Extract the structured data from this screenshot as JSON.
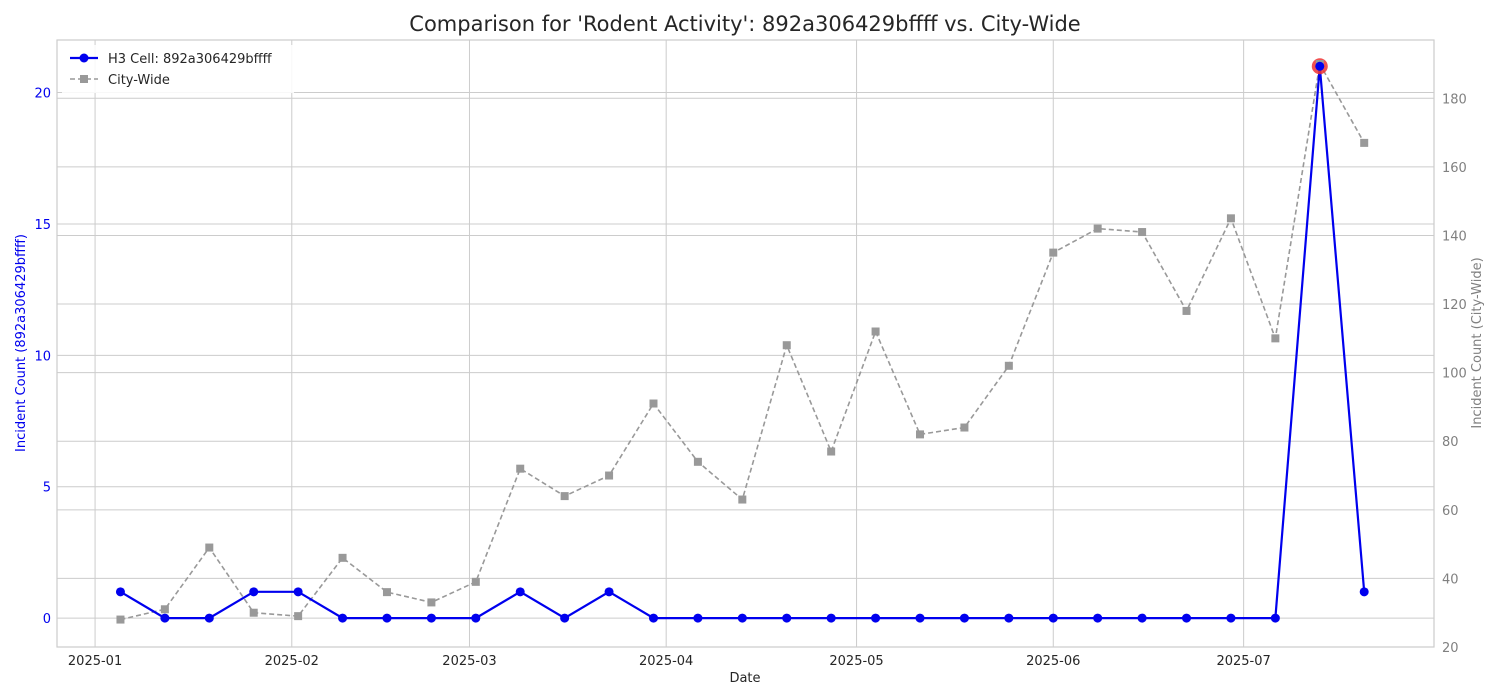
{
  "chart_data": {
    "type": "line",
    "title": "Comparison for 'Rodent Activity': 892a306429bffff vs. City-Wide",
    "xlabel": "Date",
    "ylabel_left": "Incident Count (892a306429bffff)",
    "ylabel_right": "Incident Count (City-Wide)",
    "x_ticks": [
      "2025-01-01",
      "2025-02-01",
      "2025-03-01",
      "2025-04-01",
      "2025-05-01",
      "2025-06-01",
      "2025-07-01"
    ],
    "x_tick_labels": [
      "2025-01",
      "2025-02",
      "2025-03",
      "2025-04",
      "2025-05",
      "2025-06",
      "2025-07"
    ],
    "xlim": [
      "2024-12-26",
      "2025-07-31"
    ],
    "ylim_left": [
      -1.1,
      22
    ],
    "ylim_right": [
      20,
      197
    ],
    "yticks_left": [
      0,
      5,
      10,
      15,
      20
    ],
    "yticks_right": [
      20,
      40,
      60,
      80,
      100,
      120,
      140,
      160,
      180
    ],
    "grid": true,
    "legend_position": "top-left",
    "colors": {
      "h3": "#0000ee",
      "city": "#999999",
      "highlight": "#ee3333",
      "left_axis": "#0000ee",
      "right_axis": "#808080"
    },
    "dates": [
      "2025-01-05",
      "2025-01-12",
      "2025-01-19",
      "2025-01-26",
      "2025-02-02",
      "2025-02-09",
      "2025-02-16",
      "2025-02-23",
      "2025-03-02",
      "2025-03-09",
      "2025-03-16",
      "2025-03-23",
      "2025-03-30",
      "2025-04-06",
      "2025-04-13",
      "2025-04-20",
      "2025-04-27",
      "2025-05-04",
      "2025-05-11",
      "2025-05-18",
      "2025-05-25",
      "2025-06-01",
      "2025-06-08",
      "2025-06-15",
      "2025-06-22",
      "2025-06-29",
      "2025-07-06",
      "2025-07-13",
      "2025-07-20"
    ],
    "series": [
      {
        "name": "H3 Cell: 892a306429bffff",
        "axis": "left",
        "values": [
          1,
          0,
          0,
          1,
          1,
          0,
          0,
          0,
          0,
          1,
          0,
          1,
          0,
          0,
          0,
          0,
          0,
          0,
          0,
          0,
          0,
          0,
          0,
          0,
          0,
          0,
          0,
          21,
          1
        ]
      },
      {
        "name": "City-Wide",
        "axis": "right",
        "values": [
          28,
          31,
          49,
          30,
          29,
          46,
          36,
          33,
          39,
          72,
          64,
          70,
          91,
          74,
          63,
          108,
          77,
          112,
          82,
          84,
          102,
          135,
          142,
          141,
          118,
          145,
          110,
          190,
          167
        ]
      }
    ],
    "highlight_date": "2025-07-13"
  }
}
